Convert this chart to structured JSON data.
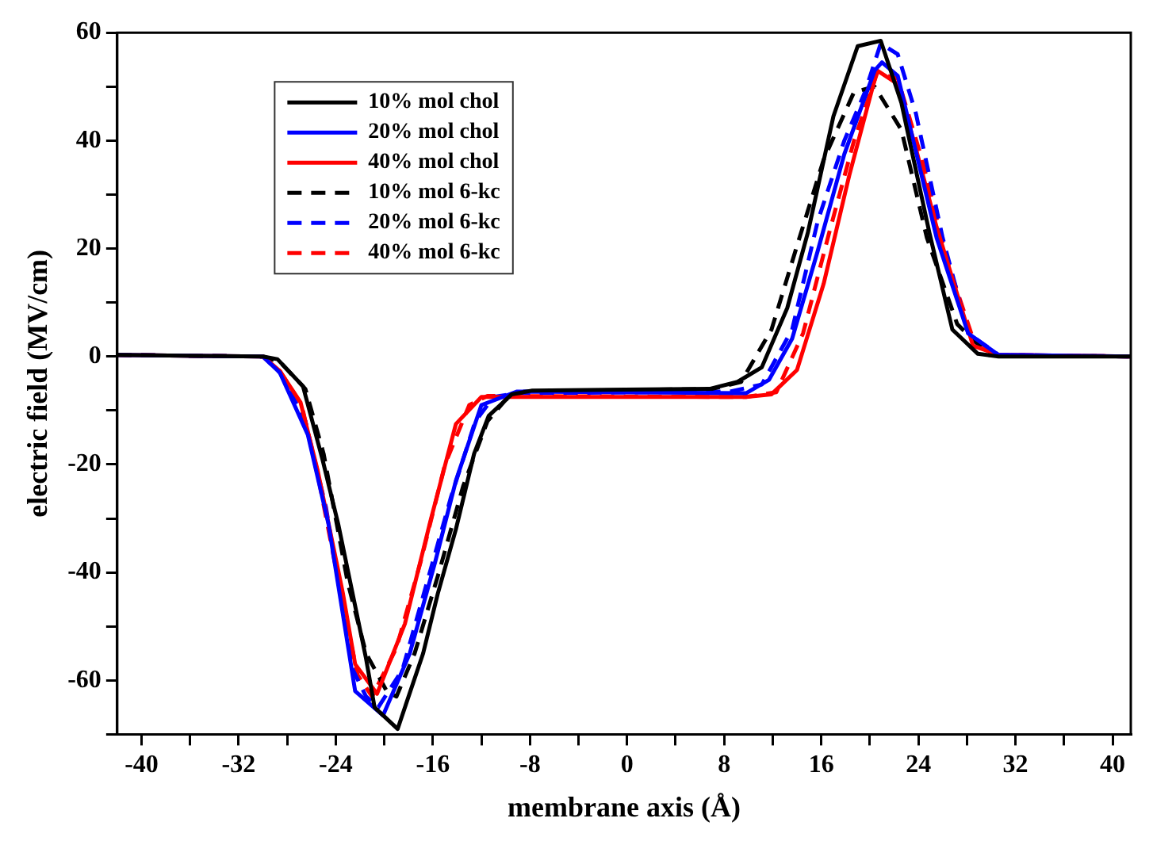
{
  "chart_data": {
    "type": "line",
    "xlabel": "membrane axis (Å)",
    "ylabel": "electric field (MV/cm)",
    "xlim": [
      -42,
      41.5
    ],
    "ylim": [
      -70,
      60
    ],
    "xticks": [
      -40,
      {
        "value": -36,
        "label": null
      },
      -32,
      {
        "value": -28,
        "label": null
      },
      -24,
      {
        "value": -20,
        "label": null
      },
      -16,
      {
        "value": -12,
        "label": null
      },
      -8,
      {
        "value": -4,
        "label": null
      },
      0,
      {
        "value": 4,
        "label": null
      },
      8,
      {
        "value": 12,
        "label": null
      },
      16,
      {
        "value": 20,
        "label": null
      },
      24,
      {
        "value": 28,
        "label": null
      },
      32,
      {
        "value": 36,
        "label": null
      },
      40
    ],
    "yticks": [
      {
        "value": -70,
        "label": null
      },
      -60,
      {
        "value": -50,
        "label": null
      },
      -40,
      {
        "value": -30,
        "label": null
      },
      -20,
      {
        "value": -10,
        "label": null
      },
      0,
      {
        "value": 10,
        "label": null
      },
      20,
      {
        "value": 30,
        "label": null
      },
      40,
      {
        "value": 50,
        "label": null
      },
      60
    ],
    "legend": "top left",
    "marker": "none",
    "series": [
      {
        "name": "10% mol chol",
        "color": "#000000",
        "line_style": "solid",
        "x": [
          -42,
          -30,
          -28.8,
          -26.7,
          -25.1,
          -23.8,
          -21.5,
          -20.8,
          -18.9,
          -16.8,
          -15.6,
          -14.1,
          -12.6,
          -11.4,
          -9.5,
          -7.8,
          6.8,
          9.1,
          11.1,
          13.2,
          14.9,
          17,
          19,
          20.9,
          22.6,
          24.9,
          26.8,
          28.9,
          30.6,
          41.5
        ],
        "values": [
          0.3,
          0,
          -0.5,
          -5.5,
          -19,
          -31,
          -56,
          -65,
          -69,
          -55,
          -44,
          -32,
          -18,
          -11,
          -7,
          -6.3,
          -6,
          -4.7,
          -2,
          9,
          23,
          44.5,
          57.5,
          58.5,
          47,
          23,
          5,
          0.5,
          0,
          0
        ]
      },
      {
        "name": "20% mol chol",
        "color": "#0000ff",
        "line_style": "solid",
        "x": [
          -42,
          -30,
          -28.6,
          -26.3,
          -24.6,
          -22.4,
          -20.1,
          -17.9,
          -15.8,
          -14.1,
          -12,
          -9.1,
          9.8,
          11.7,
          13.6,
          15.7,
          17.9,
          20.4,
          21,
          22.3,
          25.5,
          28.1,
          30.6,
          41.5
        ],
        "values": [
          0.3,
          0,
          -3,
          -14.5,
          -31,
          -62,
          -66.5,
          -55,
          -38,
          -23,
          -9,
          -6.5,
          -6.8,
          -4.3,
          3.3,
          19.5,
          37.5,
          53,
          54.5,
          52,
          22,
          4.3,
          0.3,
          0
        ]
      },
      {
        "name": "40% mol chol",
        "color": "#ff0000",
        "line_style": "solid",
        "x": [
          -42,
          -30,
          -28.6,
          -26.9,
          -25.5,
          -23.4,
          -22.4,
          -20.6,
          -18.3,
          -16.2,
          -14.1,
          -12,
          -8.2,
          9.8,
          11.9,
          14,
          16.2,
          18.3,
          20.6,
          22.3,
          23.8,
          25.5,
          28.5,
          30.6,
          41.5
        ],
        "values": [
          0.3,
          0,
          -2.7,
          -8.5,
          -21,
          -44,
          -57,
          -62.5,
          -49.5,
          -30.5,
          -12.5,
          -7.5,
          -7.5,
          -7.5,
          -7,
          -2.5,
          13.5,
          33.5,
          53,
          50.5,
          38.5,
          24,
          2,
          0.3,
          0
        ]
      },
      {
        "name": "10% mol 6-kc",
        "color": "#000000",
        "line_style": "dashed",
        "x": [
          -42,
          -30,
          -28.6,
          -26.5,
          -25,
          -23,
          -21.5,
          -19.8,
          -19,
          -17.5,
          -15.5,
          -13.5,
          -11.5,
          -10,
          -8.5,
          7,
          9.4,
          11.9,
          14,
          16.2,
          18.7,
          20.4,
          22.6,
          24.7,
          27.2,
          29.8,
          41.5
        ],
        "values": [
          0.3,
          0,
          -1,
          -6,
          -18,
          -42,
          -55,
          -62,
          -63,
          -55,
          -40,
          -24,
          -12,
          -8,
          -6.5,
          -6,
          -4.7,
          5,
          20.5,
          36.5,
          49,
          50,
          42,
          22,
          6,
          0.3,
          0
        ]
      },
      {
        "name": "20% mol 6-kc",
        "color": "#0000ff",
        "line_style": "dashed",
        "x": [
          -42,
          -30,
          -28.6,
          -26.5,
          -24.8,
          -22.6,
          -21.5,
          -20.5,
          -18.5,
          -16.5,
          -14.5,
          -12.5,
          -11,
          -9,
          8.5,
          11.1,
          13.6,
          15.7,
          17.9,
          19.6,
          20.9,
          22.3,
          23.8,
          26,
          28.1,
          30.6,
          41.5
        ],
        "values": [
          0.3,
          0,
          -3,
          -12,
          -28,
          -58,
          -63,
          -65,
          -58,
          -42,
          -26,
          -12,
          -7.5,
          -6.8,
          -6.5,
          -5.2,
          5,
          25,
          40,
          49,
          58,
          56,
          45,
          22,
          4.3,
          0.3,
          0
        ]
      },
      {
        "name": "40% mol 6-kc",
        "color": "#ff0000",
        "line_style": "dashed",
        "x": [
          -42,
          -30,
          -28.6,
          -26.8,
          -25.3,
          -23.4,
          -22.2,
          -21,
          -19,
          -17,
          -15,
          -13,
          -11.5,
          9.8,
          12.3,
          14.5,
          16.6,
          18.7,
          20.6,
          22.3,
          24.3,
          26.4,
          28.5,
          30.6,
          41.5
        ],
        "values": [
          0.3,
          0,
          -2.7,
          -9,
          -24,
          -46,
          -59,
          -63,
          -54,
          -38,
          -20,
          -9,
          -7.3,
          -7.5,
          -6.6,
          4.3,
          22.5,
          40,
          52.5,
          51.5,
          36.5,
          17.5,
          3.3,
          0.3,
          0
        ]
      }
    ]
  }
}
